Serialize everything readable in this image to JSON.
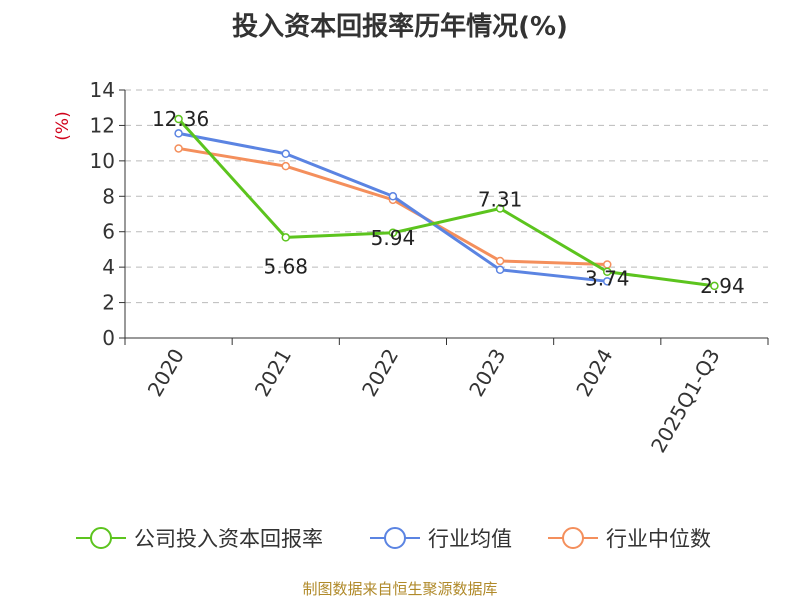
{
  "colors": {
    "company": "#5cc41e",
    "industry_avg": "#5b84e2",
    "industry_median": "#f48f5c",
    "ylabel": "#d0021b",
    "source": "#b08a2a",
    "axis": "#333333",
    "grid": "#bbbbbb"
  },
  "chart_data": {
    "type": "line",
    "title": "投入资本回报率历年情况(%)",
    "xlabel": "",
    "ylabel": "(%)",
    "ylim": [
      0,
      14
    ],
    "yticks": [
      0,
      2,
      4,
      6,
      8,
      10,
      12,
      14
    ],
    "grid": true,
    "legend_position": "bottom",
    "categories": [
      "2020",
      "2021",
      "2022",
      "2023",
      "2024",
      "2025Q1-Q3"
    ],
    "series": [
      {
        "key": "company",
        "name": "公司投入资本回报率",
        "values": [
          12.36,
          5.68,
          5.94,
          7.31,
          3.74,
          2.94
        ],
        "labels": [
          "12.36",
          "5.68",
          "5.94",
          "7.31",
          "3.74",
          "2.94"
        ]
      },
      {
        "key": "industry_avg",
        "name": "行业均值",
        "values": [
          11.55,
          10.4,
          8.0,
          3.85,
          3.2,
          null
        ]
      },
      {
        "key": "industry_median",
        "name": "行业中位数",
        "values": [
          10.7,
          9.7,
          7.8,
          4.35,
          4.15,
          null
        ]
      }
    ]
  },
  "source_note": "制图数据来自恒生聚源数据库"
}
